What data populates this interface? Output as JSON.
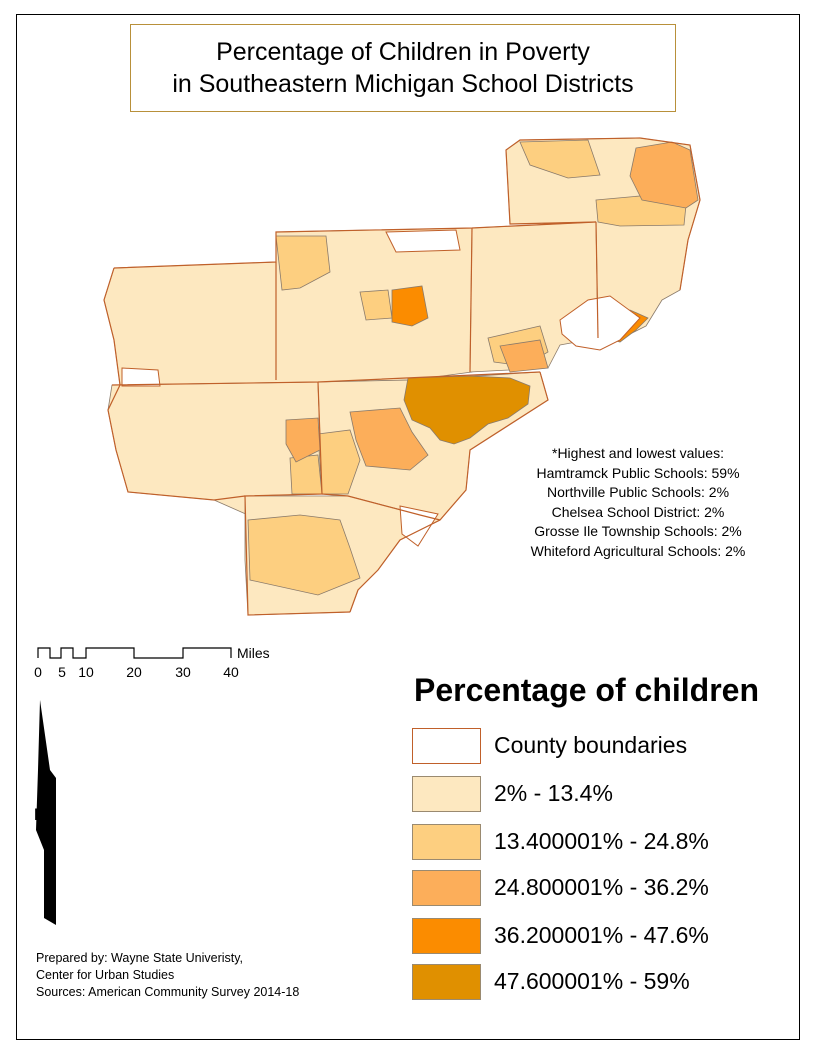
{
  "title": {
    "line1": "Percentage of Children in Poverty",
    "line2": "in Southeastern Michigan School Districts"
  },
  "notes": {
    "heading": "*Highest and lowest values:",
    "items": [
      "Hamtramck Public Schools: 59%",
      "Northville Public Schools: 2%",
      "Chelsea School District: 2%",
      "Grosse Ile Township Schools: 2%",
      "Whiteford Agricultural Schools: 2%"
    ]
  },
  "scale_bar": {
    "unit": "Miles",
    "ticks": [
      "0",
      "5",
      "10",
      "20",
      "30",
      "40"
    ]
  },
  "north_arrow": {
    "label": "N"
  },
  "legend": {
    "title": "Percentage of children",
    "items": [
      {
        "label": "County boundaries",
        "color": "#ffffff",
        "border": "#c0602a"
      },
      {
        "label": "2% - 13.4%",
        "color": "#fde8c0"
      },
      {
        "label": "13.400001% - 24.8%",
        "color": "#fdcf80"
      },
      {
        "label": "24.800001% - 36.2%",
        "color": "#fcae5a"
      },
      {
        "label": "36.200001% - 47.6%",
        "color": "#fb8c00"
      },
      {
        "label": "47.600001% - 59%",
        "color": "#e09000"
      }
    ]
  },
  "credits": {
    "line1": "Prepared by: Wayne State Univeristy,",
    "line2": "Center for Urban Studies",
    "line3": "Sources: American Community Survey 2014-18"
  },
  "colors": {
    "class1": "#fde8c0",
    "class2": "#fdcf80",
    "class3": "#fcae5a",
    "class4": "#fb8c00",
    "class5": "#e09000",
    "county_border": "#c0602a",
    "district_border": "#8a7a6a"
  }
}
